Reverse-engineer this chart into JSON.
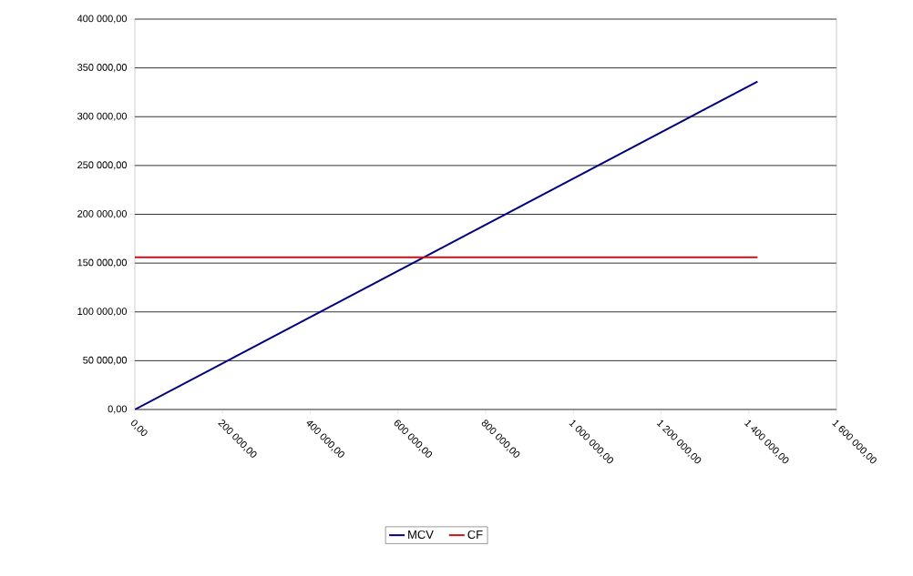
{
  "chart_data": {
    "type": "line",
    "series": [
      {
        "name": "MCV",
        "color": "#00007f",
        "values": [
          0,
          336000
        ]
      },
      {
        "name": "CF",
        "color": "#c0141a",
        "values": [
          156000,
          156000
        ]
      }
    ],
    "x": [
      0,
      1420000
    ],
    "xlim": [
      0,
      1600000
    ],
    "xticks": [
      {
        "value": 0,
        "label": "0,00"
      },
      {
        "value": 200000,
        "label": "200 000,00"
      },
      {
        "value": 400000,
        "label": "400 000,00"
      },
      {
        "value": 600000,
        "label": "600 000,00"
      },
      {
        "value": 800000,
        "label": "800 000,00"
      },
      {
        "value": 1000000,
        "label": "1 000 000,00"
      },
      {
        "value": 1200000,
        "label": "1 200 000,00"
      },
      {
        "value": 1400000,
        "label": "1 400 000,00"
      },
      {
        "value": 1600000,
        "label": "1 600 000,00"
      }
    ],
    "ylim": [
      0,
      400000
    ],
    "yticks": [
      {
        "value": 0,
        "label": "0,00"
      },
      {
        "value": 50000,
        "label": "50 000,00"
      },
      {
        "value": 100000,
        "label": "100 000,00"
      },
      {
        "value": 150000,
        "label": "150 000,00"
      },
      {
        "value": 200000,
        "label": "200 000,00"
      },
      {
        "value": 250000,
        "label": "250 000,00"
      },
      {
        "value": 300000,
        "label": "300 000,00"
      },
      {
        "value": 350000,
        "label": "350 000,00"
      },
      {
        "value": 400000,
        "label": "400 000,00"
      }
    ],
    "grid": "y",
    "legend": "bottom",
    "marker": "none",
    "line_style": "solid"
  }
}
